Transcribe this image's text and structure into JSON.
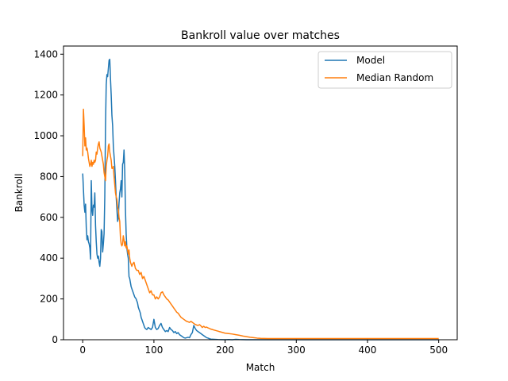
{
  "chart_data": {
    "type": "line",
    "title": "Bankroll value over matches",
    "xlabel": "Match",
    "ylabel": "Bankroll",
    "xlim": [
      -27,
      526
    ],
    "ylim": [
      0,
      1440
    ],
    "xticks": [
      0,
      100,
      200,
      300,
      400,
      500
    ],
    "yticks": [
      0,
      200,
      400,
      600,
      800,
      1000,
      1200,
      1400
    ],
    "grid": false,
    "legend_position": "top-right",
    "series": [
      {
        "name": "Model",
        "color": "#1f77b4",
        "points": [
          [
            0,
            815
          ],
          [
            2,
            660
          ],
          [
            3,
            625
          ],
          [
            4,
            665
          ],
          [
            5,
            550
          ],
          [
            6,
            490
          ],
          [
            7,
            510
          ],
          [
            8,
            480
          ],
          [
            9,
            470
          ],
          [
            10,
            450
          ],
          [
            11,
            395
          ],
          [
            12,
            780
          ],
          [
            13,
            640
          ],
          [
            14,
            610
          ],
          [
            15,
            660
          ],
          [
            16,
            650
          ],
          [
            17,
            720
          ],
          [
            18,
            560
          ],
          [
            19,
            480
          ],
          [
            20,
            420
          ],
          [
            21,
            400
          ],
          [
            22,
            410
          ],
          [
            23,
            380
          ],
          [
            24,
            360
          ],
          [
            25,
            400
          ],
          [
            26,
            540
          ],
          [
            27,
            530
          ],
          [
            28,
            430
          ],
          [
            29,
            470
          ],
          [
            30,
            520
          ],
          [
            31,
            700
          ],
          [
            32,
            1050
          ],
          [
            33,
            1250
          ],
          [
            34,
            1300
          ],
          [
            35,
            1290
          ],
          [
            36,
            1330
          ],
          [
            37,
            1370
          ],
          [
            38,
            1375
          ],
          [
            39,
            1280
          ],
          [
            40,
            1200
          ],
          [
            41,
            1100
          ],
          [
            42,
            1050
          ],
          [
            43,
            950
          ],
          [
            44,
            900
          ],
          [
            45,
            850
          ],
          [
            46,
            780
          ],
          [
            47,
            700
          ],
          [
            48,
            640
          ],
          [
            49,
            580
          ],
          [
            50,
            600
          ],
          [
            51,
            670
          ],
          [
            52,
            720
          ],
          [
            53,
            740
          ],
          [
            54,
            780
          ],
          [
            55,
            700
          ],
          [
            56,
            860
          ],
          [
            57,
            870
          ],
          [
            58,
            930
          ],
          [
            59,
            830
          ],
          [
            60,
            640
          ],
          [
            61,
            520
          ],
          [
            62,
            450
          ],
          [
            63,
            420
          ],
          [
            64,
            400
          ],
          [
            65,
            310
          ],
          [
            66,
            300
          ],
          [
            67,
            280
          ],
          [
            68,
            260
          ],
          [
            69,
            250
          ],
          [
            70,
            240
          ],
          [
            71,
            230
          ],
          [
            72,
            220
          ],
          [
            73,
            210
          ],
          [
            74,
            205
          ],
          [
            75,
            200
          ],
          [
            76,
            190
          ],
          [
            77,
            180
          ],
          [
            78,
            160
          ],
          [
            79,
            150
          ],
          [
            80,
            140
          ],
          [
            81,
            130
          ],
          [
            82,
            110
          ],
          [
            83,
            100
          ],
          [
            84,
            90
          ],
          [
            85,
            80
          ],
          [
            86,
            70
          ],
          [
            87,
            60
          ],
          [
            88,
            55
          ],
          [
            90,
            50
          ],
          [
            92,
            60
          ],
          [
            94,
            55
          ],
          [
            96,
            50
          ],
          [
            98,
            60
          ],
          [
            100,
            100
          ],
          [
            102,
            60
          ],
          [
            104,
            50
          ],
          [
            106,
            55
          ],
          [
            108,
            70
          ],
          [
            110,
            80
          ],
          [
            112,
            60
          ],
          [
            114,
            50
          ],
          [
            116,
            40
          ],
          [
            118,
            45
          ],
          [
            120,
            40
          ],
          [
            122,
            60
          ],
          [
            124,
            50
          ],
          [
            126,
            45
          ],
          [
            128,
            35
          ],
          [
            130,
            40
          ],
          [
            132,
            30
          ],
          [
            134,
            35
          ],
          [
            136,
            25
          ],
          [
            138,
            20
          ],
          [
            140,
            15
          ],
          [
            142,
            10
          ],
          [
            144,
            8
          ],
          [
            146,
            10
          ],
          [
            148,
            12
          ],
          [
            150,
            10
          ],
          [
            152,
            25
          ],
          [
            154,
            35
          ],
          [
            156,
            70
          ],
          [
            158,
            55
          ],
          [
            160,
            45
          ],
          [
            162,
            40
          ],
          [
            164,
            35
          ],
          [
            166,
            30
          ],
          [
            168,
            25
          ],
          [
            170,
            20
          ],
          [
            172,
            15
          ],
          [
            174,
            10
          ],
          [
            176,
            8
          ],
          [
            178,
            5
          ],
          [
            180,
            3
          ],
          [
            185,
            2
          ],
          [
            190,
            1
          ],
          [
            200,
            0
          ],
          [
            205,
            1
          ],
          [
            210,
            0
          ],
          [
            215,
            2
          ],
          [
            220,
            1
          ],
          [
            230,
            0
          ],
          [
            260,
            0
          ],
          [
            300,
            0
          ],
          [
            350,
            0
          ],
          [
            400,
            0
          ],
          [
            450,
            0
          ],
          [
            500,
            0
          ]
        ]
      },
      {
        "name": "Median Random",
        "color": "#ff7f0e",
        "points": [
          [
            0,
            900
          ],
          [
            1,
            1130
          ],
          [
            2,
            1050
          ],
          [
            3,
            950
          ],
          [
            4,
            990
          ],
          [
            5,
            930
          ],
          [
            6,
            940
          ],
          [
            7,
            920
          ],
          [
            8,
            890
          ],
          [
            9,
            870
          ],
          [
            10,
            850
          ],
          [
            11,
            860
          ],
          [
            12,
            880
          ],
          [
            13,
            850
          ],
          [
            14,
            870
          ],
          [
            15,
            860
          ],
          [
            16,
            880
          ],
          [
            17,
            870
          ],
          [
            18,
            880
          ],
          [
            19,
            920
          ],
          [
            20,
            910
          ],
          [
            21,
            940
          ],
          [
            22,
            960
          ],
          [
            23,
            970
          ],
          [
            24,
            940
          ],
          [
            25,
            930
          ],
          [
            26,
            920
          ],
          [
            27,
            900
          ],
          [
            28,
            880
          ],
          [
            29,
            860
          ],
          [
            30,
            820
          ],
          [
            31,
            800
          ],
          [
            32,
            780
          ],
          [
            33,
            850
          ],
          [
            34,
            880
          ],
          [
            35,
            900
          ],
          [
            36,
            950
          ],
          [
            37,
            960
          ],
          [
            38,
            920
          ],
          [
            39,
            900
          ],
          [
            40,
            880
          ],
          [
            41,
            840
          ],
          [
            42,
            840
          ],
          [
            43,
            850
          ],
          [
            44,
            800
          ],
          [
            45,
            760
          ],
          [
            46,
            720
          ],
          [
            47,
            700
          ],
          [
            48,
            690
          ],
          [
            49,
            650
          ],
          [
            50,
            640
          ],
          [
            51,
            600
          ],
          [
            52,
            580
          ],
          [
            53,
            500
          ],
          [
            54,
            470
          ],
          [
            55,
            460
          ],
          [
            56,
            470
          ],
          [
            57,
            510
          ],
          [
            58,
            490
          ],
          [
            59,
            460
          ],
          [
            60,
            480
          ],
          [
            61,
            450
          ],
          [
            62,
            460
          ],
          [
            63,
            440
          ],
          [
            64,
            420
          ],
          [
            65,
            440
          ],
          [
            66,
            400
          ],
          [
            67,
            380
          ],
          [
            68,
            370
          ],
          [
            69,
            360
          ],
          [
            70,
            370
          ],
          [
            72,
            380
          ],
          [
            74,
            350
          ],
          [
            76,
            340
          ],
          [
            78,
            340
          ],
          [
            80,
            320
          ],
          [
            82,
            330
          ],
          [
            84,
            300
          ],
          [
            86,
            310
          ],
          [
            88,
            290
          ],
          [
            90,
            270
          ],
          [
            92,
            250
          ],
          [
            94,
            230
          ],
          [
            96,
            240
          ],
          [
            98,
            220
          ],
          [
            100,
            220
          ],
          [
            102,
            200
          ],
          [
            104,
            210
          ],
          [
            106,
            200
          ],
          [
            108,
            210
          ],
          [
            110,
            230
          ],
          [
            112,
            235
          ],
          [
            114,
            220
          ],
          [
            116,
            210
          ],
          [
            118,
            200
          ],
          [
            120,
            195
          ],
          [
            122,
            185
          ],
          [
            124,
            175
          ],
          [
            126,
            165
          ],
          [
            128,
            155
          ],
          [
            130,
            145
          ],
          [
            132,
            135
          ],
          [
            134,
            130
          ],
          [
            136,
            120
          ],
          [
            138,
            110
          ],
          [
            140,
            105
          ],
          [
            142,
            100
          ],
          [
            144,
            95
          ],
          [
            146,
            90
          ],
          [
            148,
            88
          ],
          [
            150,
            85
          ],
          [
            152,
            90
          ],
          [
            154,
            85
          ],
          [
            156,
            80
          ],
          [
            158,
            75
          ],
          [
            160,
            72
          ],
          [
            162,
            70
          ],
          [
            164,
            74
          ],
          [
            166,
            68
          ],
          [
            168,
            60
          ],
          [
            170,
            66
          ],
          [
            172,
            60
          ],
          [
            174,
            62
          ],
          [
            176,
            58
          ],
          [
            178,
            55
          ],
          [
            180,
            52
          ],
          [
            182,
            50
          ],
          [
            184,
            48
          ],
          [
            186,
            46
          ],
          [
            188,
            44
          ],
          [
            190,
            42
          ],
          [
            192,
            40
          ],
          [
            194,
            38
          ],
          [
            196,
            36
          ],
          [
            198,
            34
          ],
          [
            200,
            32
          ],
          [
            205,
            30
          ],
          [
            210,
            28
          ],
          [
            215,
            25
          ],
          [
            220,
            22
          ],
          [
            225,
            18
          ],
          [
            230,
            15
          ],
          [
            235,
            12
          ],
          [
            240,
            10
          ],
          [
            245,
            8
          ],
          [
            250,
            7
          ],
          [
            260,
            6
          ],
          [
            280,
            6
          ],
          [
            300,
            6
          ],
          [
            350,
            6
          ],
          [
            400,
            6
          ],
          [
            450,
            6
          ],
          [
            500,
            6
          ]
        ]
      }
    ]
  }
}
